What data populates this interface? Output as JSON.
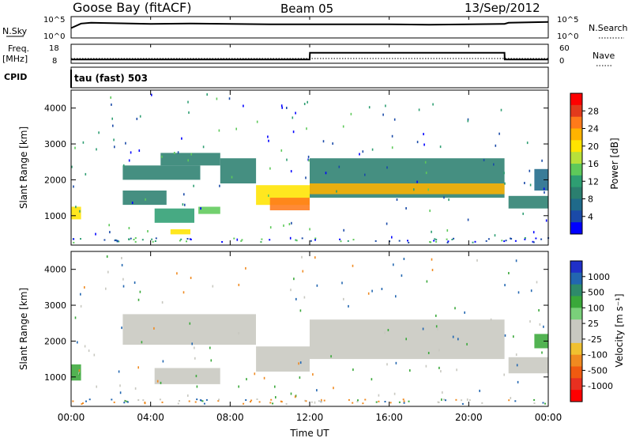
{
  "header": {
    "station": "Goose Bay (fitACF)",
    "beam": "Beam 05",
    "date": "13/Sep/2012"
  },
  "strips": {
    "nsky_label": "N.Sky",
    "nsky_ticks": [
      "10^5",
      "10^0"
    ],
    "nsearch_label": "N.Search",
    "nsearch_ticks": [
      "10^5",
      "10^0"
    ],
    "freq_label": "Freq.",
    "freq_unit": "[MHz]",
    "freq_ticks": [
      "18",
      "8"
    ],
    "nave_label": "Nave",
    "nave_ticks": [
      "60",
      "0"
    ],
    "cpid_label": "CPID",
    "cpid_text": "tau (fast) 503"
  },
  "panels": {
    "power_ylabel": "Slant Range [km]",
    "velocity_ylabel": "Slant Range [km]",
    "y_ticks": [
      "4000",
      "3000",
      "2000",
      "1000"
    ],
    "x_ticks": [
      "00:00",
      "04:00",
      "08:00",
      "12:00",
      "16:00",
      "20:00",
      "00:00"
    ],
    "xlabel": "Time UT"
  },
  "colorbars": {
    "power_label": "Power [dB]",
    "power_ticks": [
      "28",
      "24",
      "20",
      "16",
      "12",
      "8",
      "4"
    ],
    "power_colors": [
      "#ff0000",
      "#e23a1c",
      "#ff7a1a",
      "#ffb300",
      "#ffe400",
      "#b7e03a",
      "#5ec95a",
      "#2e9e72",
      "#2b7f6f",
      "#1f6a8a",
      "#1a4aa8",
      "#0000ff"
    ],
    "velocity_label": "Velocity [m s⁻¹]",
    "velocity_ticks": [
      "1000",
      "500",
      "100",
      "25",
      "-25",
      "-100",
      "-500",
      "-1000"
    ],
    "velocity_colors": [
      "#2030c8",
      "#2266b0",
      "#2e8a6a",
      "#3aa83a",
      "#7ad07a",
      "#c8c8c0",
      "#c8c8c0",
      "#f0c030",
      "#f08a20",
      "#f05a10",
      "#e83020",
      "#ff0000"
    ]
  },
  "chart_data": [
    {
      "type": "line",
      "title": "N.Sky / N.Search",
      "xlim": [
        0,
        24
      ],
      "ylim": [
        0,
        5
      ],
      "x": [
        0,
        0.5,
        1,
        2,
        4,
        6,
        8,
        10,
        12,
        14,
        16,
        18,
        20,
        21.8,
        22,
        23,
        24
      ],
      "series": [
        {
          "name": "N.Sky",
          "values": [
            2.6,
            3.8,
            4.0,
            3.9,
            3.7,
            3.8,
            3.7,
            3.6,
            3.6,
            3.6,
            3.6,
            3.5,
            3.6,
            3.7,
            4.0,
            4.1,
            4.2
          ]
        }
      ]
    },
    {
      "type": "line",
      "title": "Freq / Nave",
      "xlim": [
        0,
        24
      ],
      "ylim": [
        8,
        18
      ],
      "x": [
        0,
        12,
        12.01,
        21.8,
        21.81,
        24
      ],
      "series": [
        {
          "name": "Freq.",
          "values": [
            10,
            10,
            13.5,
            13.5,
            10,
            10
          ]
        }
      ]
    },
    {
      "type": "heatmap",
      "title": "Power [dB]",
      "xlabel": "Time UT",
      "ylabel": "Slant Range [km]",
      "xlim": [
        0,
        24
      ],
      "ylim": [
        180,
        4500
      ],
      "regions": [
        {
          "t": [
            0,
            0.5
          ],
          "r": [
            900,
            1250
          ],
          "value": 20
        },
        {
          "t": [
            2.6,
            6.5
          ],
          "r": [
            2000,
            2400
          ],
          "value": 8
        },
        {
          "t": [
            4.5,
            7.5
          ],
          "r": [
            2400,
            2750
          ],
          "value": 8
        },
        {
          "t": [
            7.5,
            9.3
          ],
          "r": [
            1900,
            2600
          ],
          "value": 10
        },
        {
          "t": [
            2.6,
            4.8
          ],
          "r": [
            1300,
            1700
          ],
          "value": 8
        },
        {
          "t": [
            4.2,
            6.2
          ],
          "r": [
            800,
            1200
          ],
          "value": 12
        },
        {
          "t": [
            6.4,
            7.5
          ],
          "r": [
            1050,
            1250
          ],
          "value": 14
        },
        {
          "t": [
            5.0,
            6.0
          ],
          "r": [
            480,
            620
          ],
          "value": 20
        },
        {
          "t": [
            9.3,
            12.0
          ],
          "r": [
            1300,
            1850
          ],
          "value": 20
        },
        {
          "t": [
            10.0,
            12.0
          ],
          "r": [
            1150,
            1500
          ],
          "value": 26
        },
        {
          "t": [
            12.0,
            21.8
          ],
          "r": [
            1500,
            2600
          ],
          "value": 10
        },
        {
          "t": [
            12.0,
            21.8
          ],
          "r": [
            1600,
            1900
          ],
          "value": 22
        },
        {
          "t": [
            22.0,
            24.0
          ],
          "r": [
            1200,
            1550
          ],
          "value": 8
        },
        {
          "t": [
            23.3,
            24.0
          ],
          "r": [
            1700,
            2300
          ],
          "value": 6
        }
      ]
    },
    {
      "type": "heatmap",
      "title": "Velocity [m s⁻¹]",
      "xlabel": "Time UT",
      "ylabel": "Slant Range [km]",
      "xlim": [
        0,
        24
      ],
      "ylim": [
        180,
        4500
      ],
      "regions": [
        {
          "t": [
            0,
            0.5
          ],
          "r": [
            900,
            1350
          ],
          "value": 150
        },
        {
          "t": [
            2.6,
            9.3
          ],
          "r": [
            1900,
            2750
          ],
          "value": 0
        },
        {
          "t": [
            4.2,
            7.5
          ],
          "r": [
            800,
            1250
          ],
          "value": -80
        },
        {
          "t": [
            9.3,
            12.0
          ],
          "r": [
            1150,
            1850
          ],
          "value": 0
        },
        {
          "t": [
            12.0,
            21.8
          ],
          "r": [
            1500,
            2600
          ],
          "value": 0
        },
        {
          "t": [
            22.0,
            24.0
          ],
          "r": [
            1100,
            1550
          ],
          "value": 0
        },
        {
          "t": [
            23.3,
            24.0
          ],
          "r": [
            1800,
            2200
          ],
          "value": 150
        }
      ]
    }
  ]
}
